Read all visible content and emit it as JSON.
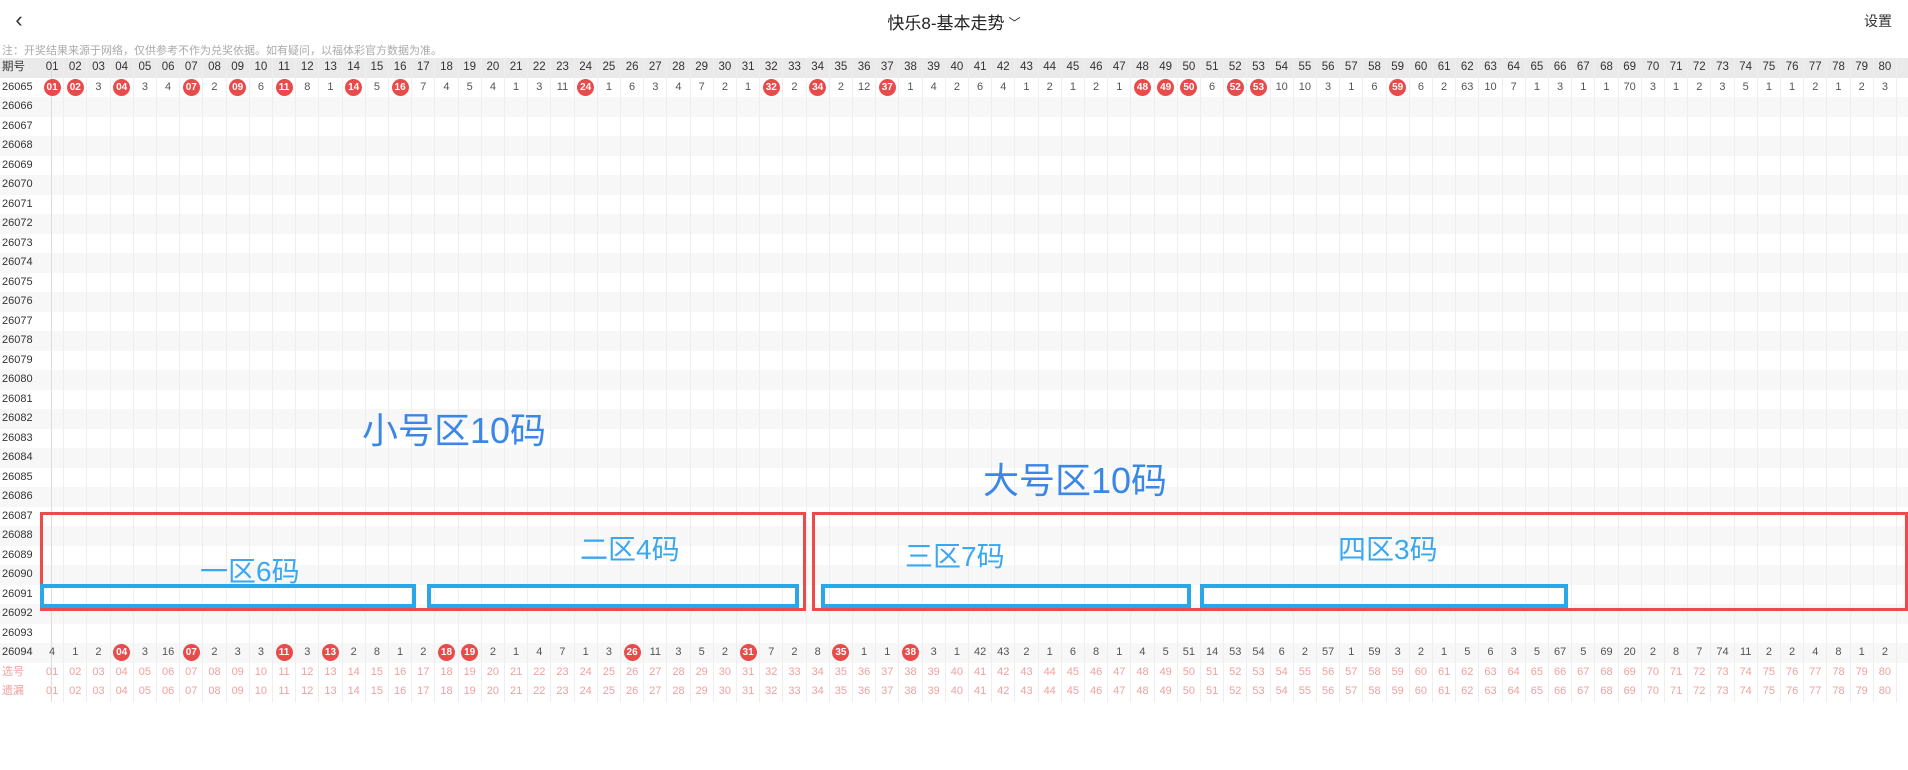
{
  "header": {
    "back_icon": "chevron-left-icon",
    "title": "快乐8-基本走势",
    "title_icon": "chevron-down-icon",
    "settings_label": "设置"
  },
  "note": "注：开奖结果来源于网络，仅供参考不作为兑奖依据。如有疑问，以福体彩官方数据为准。",
  "table": {
    "period_header": "期号",
    "numbers": [
      "01",
      "02",
      "03",
      "04",
      "05",
      "06",
      "07",
      "08",
      "09",
      "10",
      "11",
      "12",
      "13",
      "14",
      "15",
      "16",
      "17",
      "18",
      "19",
      "20",
      "21",
      "22",
      "23",
      "24",
      "25",
      "26",
      "27",
      "28",
      "29",
      "30",
      "31",
      "32",
      "33",
      "34",
      "35",
      "36",
      "37",
      "38",
      "39",
      "40",
      "41",
      "42",
      "43",
      "44",
      "45",
      "46",
      "47",
      "48",
      "49",
      "50",
      "51",
      "52",
      "53",
      "54",
      "55",
      "56",
      "57",
      "58",
      "59",
      "60",
      "61",
      "62",
      "63",
      "64",
      "65",
      "66",
      "67",
      "68",
      "69",
      "70",
      "71",
      "72",
      "73",
      "74",
      "75",
      "76",
      "77",
      "78",
      "79",
      "80"
    ],
    "periods": [
      "26065",
      "26066",
      "26067",
      "26068",
      "26069",
      "26070",
      "26071",
      "26072",
      "26073",
      "26074",
      "26075",
      "26076",
      "26077",
      "26078",
      "26079",
      "26080",
      "26081",
      "26082",
      "26083",
      "26084",
      "26085",
      "26086",
      "26087",
      "26088",
      "26089",
      "26090",
      "26091",
      "26092",
      "26093",
      "26094"
    ],
    "rows_sample": {
      "26065": [
        "01",
        "02",
        "3",
        "04",
        "3",
        "4",
        "07",
        "2",
        "09",
        "6",
        "11",
        "8",
        "1",
        "14",
        "5",
        "16",
        "7",
        "4",
        "5",
        "4",
        "1",
        "3",
        "11",
        "24",
        "1",
        "6",
        "3",
        "4",
        "7",
        "2",
        "1",
        "32",
        "2",
        "34",
        "2",
        "12",
        "37",
        "1",
        "4",
        "2",
        "6",
        "4",
        "1",
        "2",
        "1",
        "2",
        "1",
        "48",
        "49",
        "50",
        "6",
        "52",
        "53",
        "10",
        "10",
        "3",
        "1",
        "6",
        "59",
        "6",
        "2",
        "63",
        "10",
        "7",
        "1",
        "3",
        "1",
        "1",
        "70",
        "3",
        "1",
        "2",
        "3",
        "5",
        "1",
        "1",
        "2",
        "1",
        "2",
        "3"
      ],
      "26094": [
        "4",
        "1",
        "2",
        "04",
        "3",
        "16",
        "07",
        "2",
        "3",
        "3",
        "11",
        "3",
        "13",
        "2",
        "8",
        "1",
        "2",
        "18",
        "19",
        "2",
        "1",
        "4",
        "7",
        "1",
        "3",
        "26",
        "11",
        "3",
        "5",
        "2",
        "31",
        "7",
        "2",
        "8",
        "35",
        "1",
        "1",
        "38",
        "3",
        "1",
        "42",
        "43",
        "2",
        "1",
        "6",
        "8",
        "1",
        "4",
        "5",
        "51",
        "14",
        "53",
        "54",
        "6",
        "2",
        "57",
        "1",
        "59",
        "3",
        "2",
        "1",
        "5",
        "6",
        "3",
        "5",
        "67",
        "5",
        "69",
        "20",
        "2",
        "8",
        "7",
        "74",
        "11",
        "2",
        "2",
        "4",
        "8",
        "1",
        "2"
      ]
    },
    "footer_labels": [
      "选号",
      "遗漏"
    ]
  },
  "annotations": {
    "small_zone": "小号区10码",
    "large_zone": "大号区10码",
    "zone1": "一区6码",
    "zone2": "二区4码",
    "zone3": "三区7码",
    "zone4": "四区3码"
  },
  "colors": {
    "ball": "#e94a4a",
    "ball_dark": "#a8232a",
    "red_frame": "#ee4a4a",
    "blue_frame": "#28a8ea",
    "label_blue": "#3a87e8"
  }
}
